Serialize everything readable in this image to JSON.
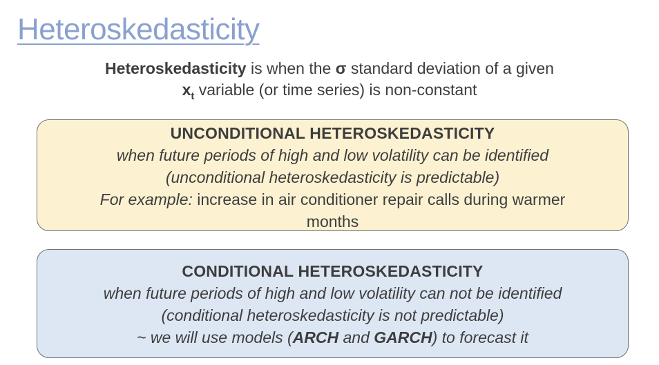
{
  "title": "Heteroskedasticity",
  "definition": {
    "term": "Heteroskedasticity",
    "text_a": " is when the ",
    "sigma": "σ",
    "text_b": " standard deviation of a given",
    "var": "x",
    "var_sub": "t",
    "text_c": " variable (or time series) is non-constant"
  },
  "unconditional": {
    "heading": "UNCONDITIONAL HETEROSKEDASTICITY",
    "line1": "when future periods of high and low volatility can be identified",
    "line2": "(unconditional heteroskedasticity is predictable)",
    "example_label": "For example:",
    "example_text": " increase in air conditioner repair calls during warmer",
    "example_text2": "months"
  },
  "conditional": {
    "heading": "CONDITIONAL HETEROSKEDASTICITY",
    "line1": "when future periods of high and low volatility can not be identified",
    "line2": "(conditional heteroskedasticity is not predictable)",
    "line3_a": "~ we will use models (",
    "arch": "ARCH",
    "line3_b": " and ",
    "garch": "GARCH",
    "line3_c": ") to forecast it"
  }
}
